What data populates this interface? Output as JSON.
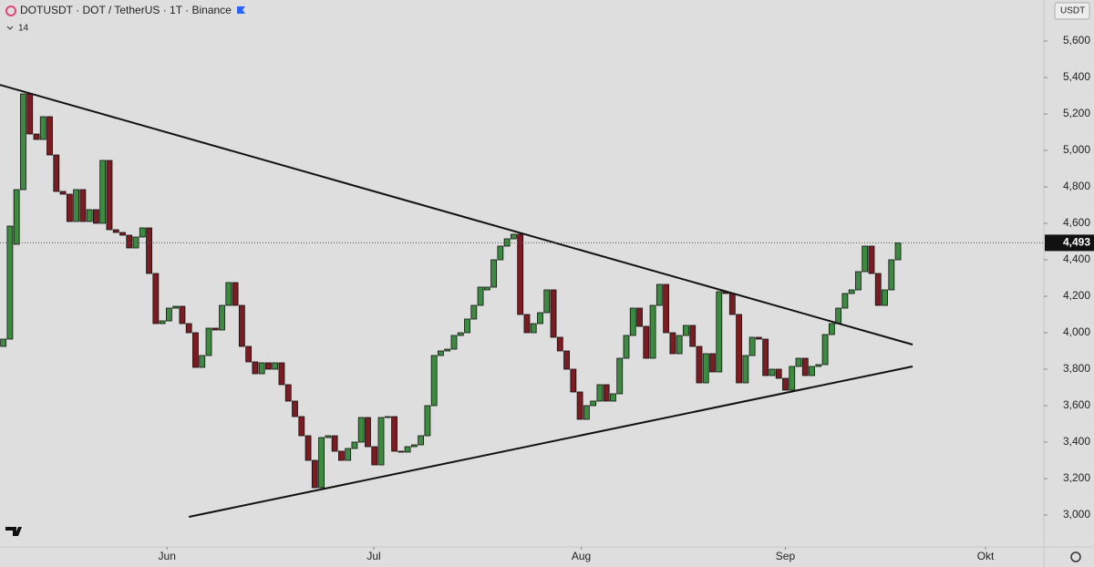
{
  "chart_data": {
    "type": "candlestick",
    "title": "DOTUSDT · DOT / TetherUS · 1T · Binance",
    "indicator_label": "14",
    "currency": "USDT",
    "up_color": "#3d8b40",
    "down_color": "#7a1c22",
    "open": [
      3925,
      3965,
      4485,
      4785,
      5310,
      5090,
      5060,
      5185,
      4975,
      4775,
      4760,
      4610,
      4785,
      4610,
      4675,
      4600,
      4945,
      4565,
      4550,
      4535,
      4465,
      4525,
      4575,
      4325,
      4050,
      4065,
      4135,
      4145,
      4050,
      4000,
      3810,
      3875,
      4025,
      4015,
      4150,
      4275,
      4150,
      3925,
      3840,
      3775,
      3835,
      3800,
      3835,
      3715,
      3625,
      3540,
      3435,
      3300,
      3150,
      3425,
      3435,
      3350,
      3300,
      3365,
      3400,
      3535,
      3375,
      3275,
      3535,
      3540,
      3350,
      3345,
      3375,
      3385,
      3435,
      3600,
      3875,
      3900,
      3910,
      3985,
      4000,
      4075,
      4150,
      4235,
      4250,
      4400,
      4475,
      4515,
      4540,
      4100,
      4000,
      4050,
      4110,
      4235,
      3975,
      3900,
      3800,
      3675,
      3525,
      3600,
      3625,
      3715,
      3625,
      3665,
      3860,
      3985,
      4135,
      4035,
      3860,
      4150,
      4265,
      4000,
      3885,
      3985,
      4040,
      3925,
      3725,
      3885,
      3785,
      4225,
      4215,
      4100,
      3725,
      3875,
      3975,
      3965,
      3765,
      3800,
      3750,
      3685,
      3815,
      3860,
      3765,
      3815,
      3825,
      3990,
      4050,
      4135,
      4215,
      4235,
      4335,
      4475,
      4325,
      4150,
      4235,
      4400
    ],
    "close": [
      3965,
      4585,
      4785,
      5310,
      5090,
      5060,
      5185,
      4975,
      4775,
      4760,
      4610,
      4785,
      4610,
      4675,
      4600,
      4945,
      4565,
      4550,
      4535,
      4465,
      4525,
      4575,
      4325,
      4050,
      4065,
      4135,
      4145,
      4050,
      4000,
      3810,
      3875,
      4025,
      4015,
      4150,
      4275,
      4150,
      3925,
      3840,
      3775,
      3835,
      3800,
      3835,
      3715,
      3625,
      3540,
      3435,
      3300,
      3150,
      3425,
      3435,
      3350,
      3300,
      3365,
      3400,
      3535,
      3375,
      3275,
      3535,
      3540,
      3350,
      3345,
      3375,
      3385,
      3435,
      3600,
      3875,
      3900,
      3910,
      3985,
      4000,
      4075,
      4150,
      4250,
      4250,
      4400,
      4475,
      4515,
      4540,
      4100,
      4000,
      4050,
      4110,
      4235,
      3975,
      3900,
      3800,
      3675,
      3525,
      3600,
      3625,
      3715,
      3625,
      3665,
      3860,
      3985,
      4135,
      4035,
      3860,
      4150,
      4265,
      4000,
      3885,
      3985,
      4040,
      3925,
      3725,
      3885,
      3785,
      4225,
      4215,
      4100,
      3725,
      3875,
      3975,
      3965,
      3765,
      3800,
      3750,
      3685,
      3815,
      3860,
      3765,
      3815,
      3825,
      3990,
      4050,
      4135,
      4215,
      4235,
      4335,
      4475,
      4325,
      4150,
      4235,
      4400,
      4493
    ],
    "xlim": [
      -0.5,
      157
    ],
    "xticks": [
      {
        "value": 24.7,
        "label": "Jun"
      },
      {
        "value": 55.9,
        "label": "Jul"
      },
      {
        "value": 87.2,
        "label": "Aug"
      },
      {
        "value": 118,
        "label": "Sep"
      },
      {
        "value": 148.2,
        "label": "Okt"
      }
    ],
    "ylim": [
      2825,
      5825
    ],
    "yticks": [
      {
        "value": 3000,
        "label": "3,000"
      },
      {
        "value": 3200,
        "label": "3,200"
      },
      {
        "value": 3400,
        "label": "3,400"
      },
      {
        "value": 3600,
        "label": "3,600"
      },
      {
        "value": 3800,
        "label": "3,800"
      },
      {
        "value": 4000,
        "label": "4,000"
      },
      {
        "value": 4200,
        "label": "4,200"
      },
      {
        "value": 4400,
        "label": "4,400"
      },
      {
        "value": 4600,
        "label": "4,600"
      },
      {
        "value": 4800,
        "label": "4,800"
      },
      {
        "value": 5000,
        "label": "5,000"
      },
      {
        "value": 5200,
        "label": "5,200"
      },
      {
        "value": 5400,
        "label": "5,400"
      },
      {
        "value": 5600,
        "label": "5,600"
      }
    ],
    "last_price": {
      "value": 4493,
      "label": "4,493"
    },
    "trendlines": [
      {
        "x": [
          -0.55,
          137.2
        ],
        "y": [
          5360,
          3935
        ]
      },
      {
        "x": [
          28,
          137.2
        ],
        "y": [
          2990,
          3815
        ]
      }
    ]
  }
}
